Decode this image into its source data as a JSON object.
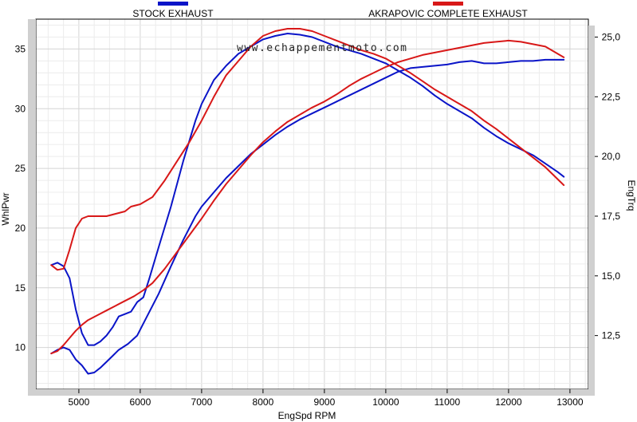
{
  "chart_data": {
    "type": "line",
    "watermark": "www.echappementmoto.com",
    "xlabel": "EngSpd  RPM",
    "ylabel_left": "WhlPwr",
    "ylabel_right": "EngTrq",
    "xlim": [
      4300,
      13300
    ],
    "ylim_left": [
      6.5,
      37.5
    ],
    "ylim_right": [
      10.25,
      25.75
    ],
    "xticks": [
      5000,
      6000,
      7000,
      8000,
      9000,
      10000,
      11000,
      12000,
      13000
    ],
    "xtick_labels": [
      "5000",
      "6000",
      "7000",
      "8000",
      "9000",
      "10000",
      "11000",
      "12000",
      "13000"
    ],
    "yticks_left": [
      10,
      15,
      20,
      25,
      30,
      35
    ],
    "ytick_left_labels": [
      "10",
      "15",
      "20",
      "25",
      "30",
      "35"
    ],
    "yticks_right": [
      12.5,
      15,
      17.5,
      20,
      22.5,
      25
    ],
    "ytick_right_labels": [
      "12,5",
      "15,0",
      "17,5",
      "20,0",
      "22,5",
      "25,0"
    ],
    "grid": true,
    "legend_position": "top",
    "series": [
      {
        "name": "STOCK EXHAUST",
        "color": "#0a14c8",
        "metric": "power",
        "axis": "left",
        "points": [
          [
            4550,
            9.5
          ],
          [
            4650,
            9.8
          ],
          [
            4750,
            10.0
          ],
          [
            4850,
            9.8
          ],
          [
            4950,
            9.0
          ],
          [
            5050,
            8.5
          ],
          [
            5150,
            7.8
          ],
          [
            5250,
            7.9
          ],
          [
            5350,
            8.3
          ],
          [
            5450,
            8.8
          ],
          [
            5550,
            9.3
          ],
          [
            5650,
            9.8
          ],
          [
            5800,
            10.3
          ],
          [
            5950,
            11.0
          ],
          [
            6100,
            12.5
          ],
          [
            6300,
            14.5
          ],
          [
            6500,
            16.8
          ],
          [
            6700,
            19.0
          ],
          [
            6900,
            21.0
          ],
          [
            7000,
            21.8
          ],
          [
            7200,
            23.0
          ],
          [
            7400,
            24.2
          ],
          [
            7600,
            25.2
          ],
          [
            7800,
            26.2
          ],
          [
            8000,
            27.0
          ],
          [
            8200,
            27.8
          ],
          [
            8400,
            28.5
          ],
          [
            8600,
            29.1
          ],
          [
            8800,
            29.6
          ],
          [
            9000,
            30.1
          ],
          [
            9200,
            30.6
          ],
          [
            9400,
            31.1
          ],
          [
            9600,
            31.6
          ],
          [
            9800,
            32.1
          ],
          [
            10000,
            32.6
          ],
          [
            10200,
            33.1
          ],
          [
            10400,
            33.4
          ],
          [
            10600,
            33.5
          ],
          [
            10800,
            33.6
          ],
          [
            11000,
            33.7
          ],
          [
            11200,
            33.9
          ],
          [
            11400,
            34.0
          ],
          [
            11600,
            33.8
          ],
          [
            11800,
            33.8
          ],
          [
            12000,
            33.9
          ],
          [
            12200,
            34.0
          ],
          [
            12400,
            34.0
          ],
          [
            12600,
            34.1
          ],
          [
            12900,
            34.1
          ]
        ]
      },
      {
        "name": "STOCK EXHAUST",
        "color": "#0a14c8",
        "metric": "torque",
        "axis": "right",
        "points": [
          [
            4550,
            15.45
          ],
          [
            4650,
            15.55
          ],
          [
            4750,
            15.4
          ],
          [
            4850,
            14.9
          ],
          [
            4950,
            13.6
          ],
          [
            5050,
            12.6
          ],
          [
            5150,
            12.1
          ],
          [
            5250,
            12.1
          ],
          [
            5350,
            12.25
          ],
          [
            5450,
            12.5
          ],
          [
            5550,
            12.85
          ],
          [
            5650,
            13.3
          ],
          [
            5750,
            13.4
          ],
          [
            5850,
            13.5
          ],
          [
            5950,
            13.9
          ],
          [
            6050,
            14.1
          ],
          [
            6150,
            14.9
          ],
          [
            6300,
            16.2
          ],
          [
            6500,
            17.9
          ],
          [
            6700,
            19.8
          ],
          [
            6900,
            21.5
          ],
          [
            7000,
            22.2
          ],
          [
            7200,
            23.2
          ],
          [
            7400,
            23.8
          ],
          [
            7600,
            24.3
          ],
          [
            7800,
            24.6
          ],
          [
            8000,
            24.9
          ],
          [
            8200,
            25.05
          ],
          [
            8400,
            25.15
          ],
          [
            8600,
            25.1
          ],
          [
            8800,
            25.0
          ],
          [
            9000,
            24.8
          ],
          [
            9200,
            24.6
          ],
          [
            9400,
            24.45
          ],
          [
            9600,
            24.3
          ],
          [
            9800,
            24.1
          ],
          [
            10000,
            23.9
          ],
          [
            10200,
            23.6
          ],
          [
            10400,
            23.3
          ],
          [
            10600,
            22.95
          ],
          [
            10800,
            22.55
          ],
          [
            11000,
            22.2
          ],
          [
            11200,
            21.9
          ],
          [
            11400,
            21.6
          ],
          [
            11600,
            21.2
          ],
          [
            11800,
            20.85
          ],
          [
            12000,
            20.55
          ],
          [
            12200,
            20.3
          ],
          [
            12400,
            20.05
          ],
          [
            12600,
            19.7
          ],
          [
            12800,
            19.35
          ],
          [
            12900,
            19.15
          ]
        ]
      },
      {
        "name": "AKRAPOVIC COMPLETE EXHAUST",
        "color": "#d81818",
        "metric": "power",
        "axis": "left",
        "points": [
          [
            4550,
            9.5
          ],
          [
            4650,
            9.7
          ],
          [
            4750,
            10.2
          ],
          [
            4850,
            10.8
          ],
          [
            4950,
            11.4
          ],
          [
            5050,
            11.9
          ],
          [
            5150,
            12.3
          ],
          [
            5300,
            12.7
          ],
          [
            5450,
            13.1
          ],
          [
            5600,
            13.5
          ],
          [
            5750,
            13.9
          ],
          [
            5900,
            14.3
          ],
          [
            6050,
            14.8
          ],
          [
            6200,
            15.4
          ],
          [
            6400,
            16.6
          ],
          [
            6600,
            18.0
          ],
          [
            6800,
            19.4
          ],
          [
            7000,
            20.8
          ],
          [
            7200,
            22.3
          ],
          [
            7400,
            23.7
          ],
          [
            7600,
            24.9
          ],
          [
            7800,
            26.1
          ],
          [
            8000,
            27.2
          ],
          [
            8200,
            28.1
          ],
          [
            8400,
            28.9
          ],
          [
            8600,
            29.5
          ],
          [
            8800,
            30.1
          ],
          [
            9000,
            30.6
          ],
          [
            9200,
            31.2
          ],
          [
            9400,
            31.9
          ],
          [
            9600,
            32.5
          ],
          [
            9800,
            33.0
          ],
          [
            10000,
            33.5
          ],
          [
            10200,
            33.9
          ],
          [
            10400,
            34.2
          ],
          [
            10600,
            34.5
          ],
          [
            10800,
            34.7
          ],
          [
            11000,
            34.9
          ],
          [
            11200,
            35.1
          ],
          [
            11400,
            35.3
          ],
          [
            11600,
            35.5
          ],
          [
            11800,
            35.6
          ],
          [
            12000,
            35.7
          ],
          [
            12200,
            35.6
          ],
          [
            12400,
            35.4
          ],
          [
            12600,
            35.2
          ],
          [
            12800,
            34.6
          ],
          [
            12900,
            34.3
          ]
        ]
      },
      {
        "name": "AKRAPOVIC COMPLETE EXHAUST",
        "color": "#d81818",
        "metric": "torque",
        "axis": "right",
        "points": [
          [
            4550,
            15.45
          ],
          [
            4650,
            15.25
          ],
          [
            4750,
            15.3
          ],
          [
            4850,
            16.1
          ],
          [
            4950,
            17.0
          ],
          [
            5050,
            17.4
          ],
          [
            5150,
            17.5
          ],
          [
            5300,
            17.5
          ],
          [
            5450,
            17.5
          ],
          [
            5600,
            17.6
          ],
          [
            5750,
            17.7
          ],
          [
            5850,
            17.9
          ],
          [
            6000,
            18.0
          ],
          [
            6200,
            18.3
          ],
          [
            6400,
            19.0
          ],
          [
            6600,
            19.8
          ],
          [
            6800,
            20.6
          ],
          [
            7000,
            21.5
          ],
          [
            7200,
            22.5
          ],
          [
            7400,
            23.4
          ],
          [
            7600,
            24.0
          ],
          [
            7800,
            24.6
          ],
          [
            8000,
            25.05
          ],
          [
            8200,
            25.25
          ],
          [
            8400,
            25.35
          ],
          [
            8600,
            25.35
          ],
          [
            8800,
            25.25
          ],
          [
            9000,
            25.05
          ],
          [
            9200,
            24.85
          ],
          [
            9400,
            24.65
          ],
          [
            9600,
            24.45
          ],
          [
            9800,
            24.3
          ],
          [
            10000,
            24.1
          ],
          [
            10200,
            23.8
          ],
          [
            10400,
            23.5
          ],
          [
            10600,
            23.15
          ],
          [
            10800,
            22.8
          ],
          [
            11000,
            22.5
          ],
          [
            11200,
            22.2
          ],
          [
            11400,
            21.9
          ],
          [
            11600,
            21.5
          ],
          [
            11800,
            21.15
          ],
          [
            12000,
            20.75
          ],
          [
            12200,
            20.35
          ],
          [
            12400,
            19.95
          ],
          [
            12600,
            19.55
          ],
          [
            12800,
            19.05
          ],
          [
            12900,
            18.8
          ]
        ]
      }
    ]
  }
}
